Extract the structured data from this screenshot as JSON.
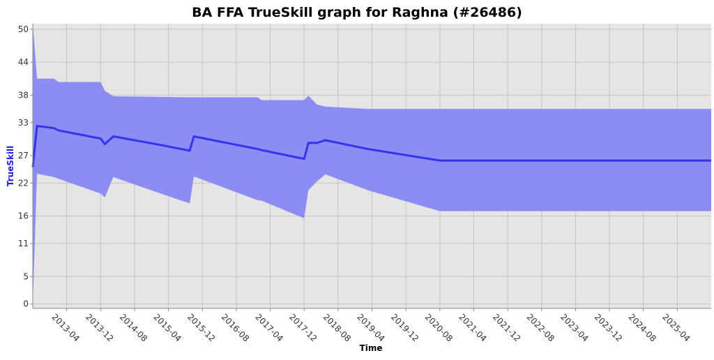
{
  "chart_data": {
    "type": "line",
    "title": "BA FFA TrueSkill graph for Raghna (#26486)",
    "x_label": "Time",
    "y_label": "TrueSkill",
    "x": [
      "2012-08",
      "2012-09",
      "2013-01",
      "2013-02",
      "2013-12",
      "2014-01",
      "2014-03",
      "2015-01",
      "2015-09",
      "2015-10",
      "2017-01",
      "2017-02",
      "2017-12",
      "2018-01",
      "2018-03",
      "2018-05",
      "2019-03",
      "2020-08",
      "2025-12"
    ],
    "series": [
      {
        "color": "#3333ee",
        "band_color": "#8c8cf2",
        "values": [
          24.9,
          32.4,
          32.0,
          31.6,
          30.1,
          29.1,
          30.5,
          29.1,
          27.9,
          30.5,
          28.2,
          28.0,
          26.4,
          29.3,
          29.3,
          29.8,
          28.2,
          26.1,
          26.1
        ],
        "band_upper": [
          51.0,
          41.0,
          41.0,
          40.4,
          40.4,
          38.8,
          37.8,
          37.7,
          37.6,
          37.6,
          37.6,
          37.1,
          37.1,
          37.9,
          36.3,
          35.9,
          35.5,
          35.5,
          35.5
        ],
        "band_lower": [
          0,
          23.7,
          23.1,
          22.8,
          20.1,
          19.4,
          23.1,
          20.4,
          18.3,
          23.2,
          18.9,
          18.8,
          15.6,
          20.7,
          22.3,
          23.6,
          20.7,
          16.9,
          16.9
        ]
      }
    ],
    "xlim": [
      "2012-08",
      "2025-12"
    ],
    "xticks": [
      "2013-04",
      "2013-12",
      "2014-08",
      "2015-04",
      "2015-12",
      "2016-08",
      "2017-04",
      "2017-12",
      "2018-08",
      "2019-04",
      "2019-12",
      "2020-08",
      "2021-04",
      "2021-12",
      "2022-08",
      "2023-04",
      "2023-12",
      "2024-08",
      "2025-04"
    ],
    "ylim": [
      -0.8,
      51
    ],
    "yticks": [
      0,
      5,
      11,
      16,
      22,
      27,
      33,
      38,
      44,
      50
    ],
    "grid": true
  }
}
